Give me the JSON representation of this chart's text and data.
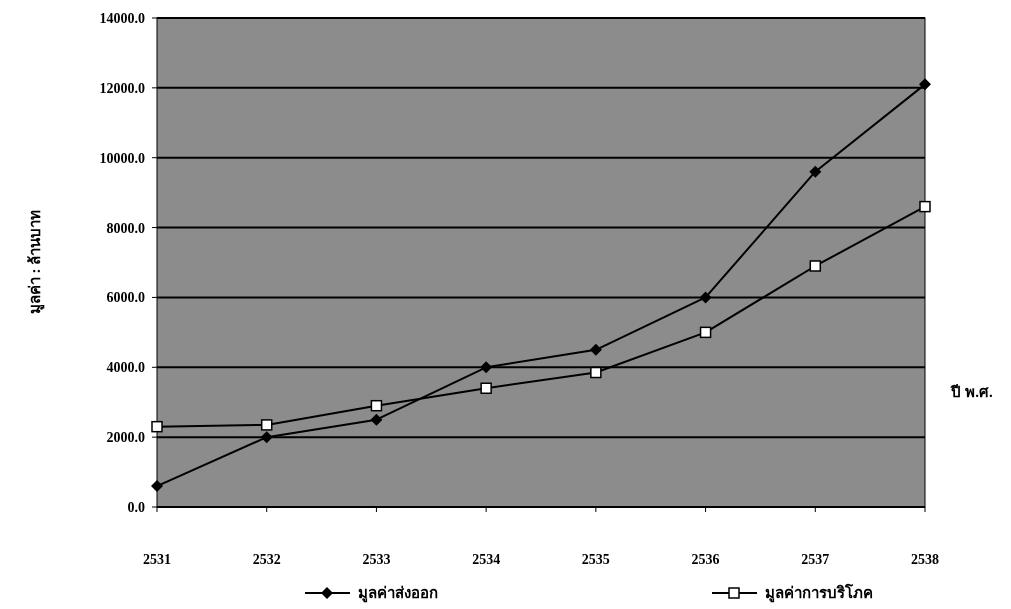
{
  "chart_data": {
    "type": "line",
    "xlabel": "ปี พ.ศ.",
    "ylabel": "มูลค่า : ล้านบาท",
    "categories": [
      "2531",
      "2532",
      "2533",
      "2534",
      "2535",
      "2536",
      "2537",
      "2538"
    ],
    "series": [
      {
        "name": "มูลค่าส่งออก",
        "color": "#000000",
        "marker": "diamond",
        "values": [
          600,
          2000,
          2500,
          4000,
          4500,
          6000,
          9600,
          12100
        ]
      },
      {
        "name": "มูลค่าการบริโภค",
        "color": "#000000",
        "marker": "square",
        "values": [
          2300,
          2350,
          2900,
          3400,
          3850,
          5000,
          6900,
          8600
        ]
      }
    ],
    "ylim": [
      0,
      14000
    ],
    "yticks": [
      {
        "value": 0,
        "label": "0.0"
      },
      {
        "value": 2000,
        "label": "2000.0"
      },
      {
        "value": 4000,
        "label": "4000.0"
      },
      {
        "value": 6000,
        "label": "6000.0"
      },
      {
        "value": 8000,
        "label": "8000.0"
      },
      {
        "value": 10000,
        "label": "10000.0"
      },
      {
        "value": 12000,
        "label": "12000.0"
      },
      {
        "value": 14000,
        "label": "14000.0"
      }
    ],
    "grid": "y",
    "legend": "bottom",
    "line_style": "solid"
  }
}
